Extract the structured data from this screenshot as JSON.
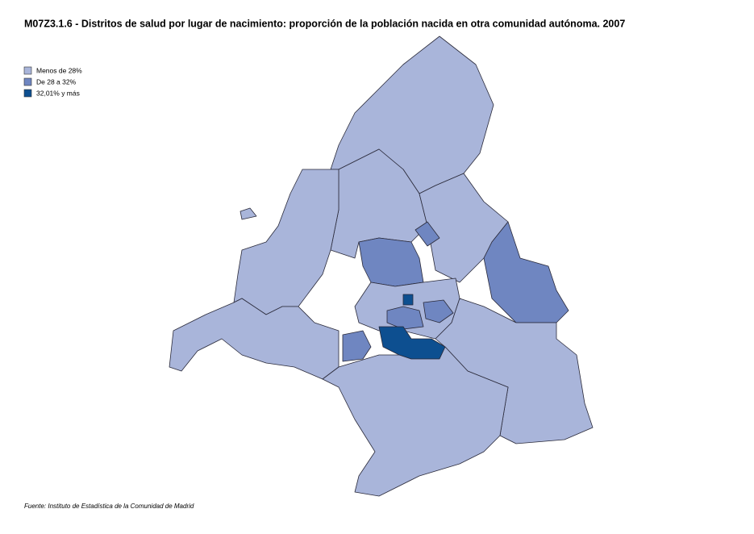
{
  "title": "M07Z3.1.6 - Distritos de salud por lugar de nacimiento: proporción de la población nacida en otra comunidad autónoma. 2007",
  "legend": [
    {
      "label": "Menos de 28%",
      "color": "#a9b5da"
    },
    {
      "label": "De 28 a 32%",
      "color": "#6f86c1"
    },
    {
      "label": "32,01% y más",
      "color": "#0d4f90"
    }
  ],
  "source": "Fuente: Instituto de Estadística de la Comunidad de Madrid"
}
